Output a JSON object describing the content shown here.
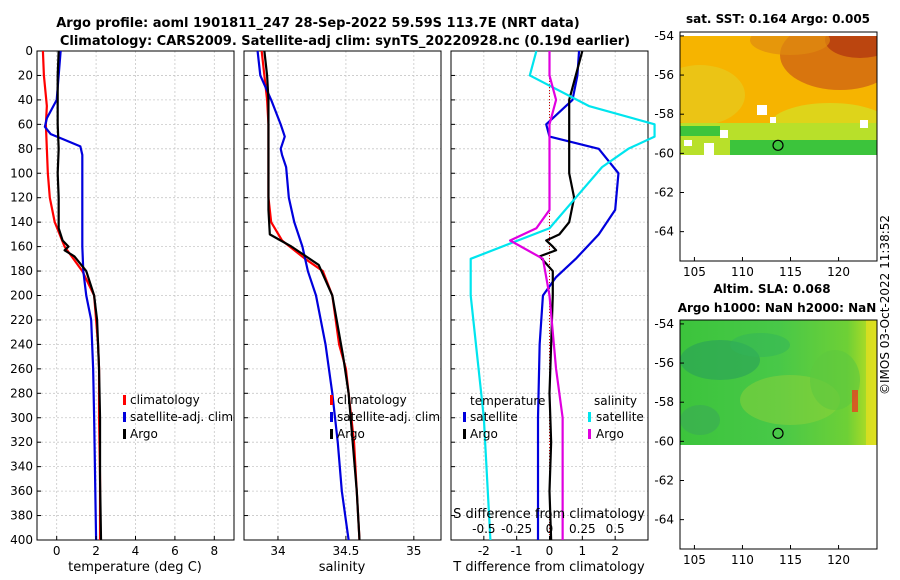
{
  "title_line1": "Argo profile: aoml 1901811_247 28-Sep-2022 59.59S 113.7E (NRT data)",
  "title_line2": "Climatology: CARS2009. Satellite-adj clim: synTS_20220928.nc (0.19d earlier)",
  "footer_stamp": "©IMOS 03-Oct-2022 11:38:52",
  "colors": {
    "climatology": "#ff0000",
    "satellite": "#0000dd",
    "argo": "#000000",
    "sat_salinity": "#00e5ee",
    "argo_salinity": "#e000e0"
  },
  "chart_data": [
    {
      "type": "line",
      "id": "temperature",
      "xlabel": "temperature (deg C)",
      "xlim": [
        -1,
        9
      ],
      "ylim": [
        0,
        400
      ],
      "xticks": [
        0,
        2,
        4,
        6,
        8
      ],
      "yticks": [
        0,
        20,
        40,
        60,
        80,
        100,
        120,
        140,
        160,
        180,
        200,
        220,
        240,
        260,
        280,
        300,
        320,
        340,
        360,
        380,
        400
      ],
      "legend": [
        "climatology",
        "satellite-adj. clim",
        "Argo"
      ],
      "series": [
        {
          "name": "climatology",
          "color": "#ff0000",
          "points": [
            [
              -0.7,
              0
            ],
            [
              -0.65,
              20
            ],
            [
              -0.5,
              45
            ],
            [
              -0.55,
              60
            ],
            [
              -0.5,
              80
            ],
            [
              -0.45,
              100
            ],
            [
              -0.35,
              120
            ],
            [
              -0.1,
              140
            ],
            [
              0.4,
              160
            ],
            [
              1.3,
              180
            ],
            [
              1.9,
              200
            ],
            [
              2.0,
              220
            ],
            [
              2.1,
              240
            ],
            [
              2.15,
              260
            ],
            [
              2.15,
              300
            ],
            [
              2.2,
              350
            ],
            [
              2.2,
              400
            ]
          ]
        },
        {
          "name": "satellite-adj. clim",
          "color": "#0000dd",
          "points": [
            [
              0.2,
              0
            ],
            [
              0.1,
              20
            ],
            [
              0.0,
              40
            ],
            [
              -0.5,
              55
            ],
            [
              -0.6,
              62
            ],
            [
              -0.3,
              68
            ],
            [
              0.3,
              72
            ],
            [
              1.2,
              78
            ],
            [
              1.3,
              85
            ],
            [
              1.3,
              100
            ],
            [
              1.3,
              160
            ],
            [
              1.35,
              180
            ],
            [
              1.5,
              200
            ],
            [
              1.75,
              220
            ],
            [
              1.85,
              260
            ],
            [
              1.9,
              300
            ],
            [
              1.95,
              350
            ],
            [
              2.0,
              400
            ]
          ]
        },
        {
          "name": "Argo",
          "color": "#000000",
          "points": [
            [
              0.1,
              0
            ],
            [
              0.05,
              20
            ],
            [
              0.05,
              40
            ],
            [
              0.05,
              60
            ],
            [
              0.1,
              80
            ],
            [
              0.05,
              100
            ],
            [
              0.1,
              120
            ],
            [
              0.1,
              145
            ],
            [
              0.3,
              155
            ],
            [
              0.6,
              160
            ],
            [
              0.4,
              163
            ],
            [
              0.9,
              168
            ],
            [
              1.5,
              180
            ],
            [
              1.9,
              200
            ],
            [
              2.05,
              220
            ],
            [
              2.1,
              240
            ],
            [
              2.15,
              260
            ],
            [
              2.2,
              300
            ],
            [
              2.2,
              350
            ],
            [
              2.25,
              400
            ]
          ]
        }
      ]
    },
    {
      "type": "line",
      "id": "salinity",
      "xlabel": "salinity",
      "xlim": [
        33.75,
        35.2
      ],
      "ylim": [
        0,
        400
      ],
      "xticks": [
        34,
        34.5,
        35
      ],
      "xtick_labels": [
        "34",
        "34.5",
        "35"
      ],
      "yticks": [
        0,
        20,
        40,
        60,
        80,
        100,
        120,
        140,
        160,
        180,
        200,
        220,
        240,
        260,
        280,
        300,
        320,
        340,
        360,
        380,
        400
      ],
      "legend": [
        "climatology",
        "satellite-adj. clim",
        "Argo"
      ],
      "series": [
        {
          "name": "climatology",
          "color": "#ff0000",
          "points": [
            [
              33.88,
              0
            ],
            [
              33.9,
              20
            ],
            [
              33.92,
              40
            ],
            [
              33.93,
              60
            ],
            [
              33.93,
              90
            ],
            [
              33.93,
              120
            ],
            [
              33.95,
              140
            ],
            [
              34.03,
              155
            ],
            [
              34.2,
              170
            ],
            [
              34.33,
              180
            ],
            [
              34.4,
              200
            ],
            [
              34.45,
              240
            ],
            [
              34.5,
              260
            ],
            [
              34.52,
              280
            ],
            [
              34.56,
              320
            ],
            [
              34.58,
              360
            ],
            [
              34.6,
              400
            ]
          ]
        },
        {
          "name": "satellite-adj. clim",
          "color": "#0000dd",
          "points": [
            [
              33.85,
              0
            ],
            [
              33.87,
              20
            ],
            [
              33.95,
              40
            ],
            [
              34.02,
              60
            ],
            [
              34.05,
              70
            ],
            [
              34.02,
              80
            ],
            [
              34.03,
              85
            ],
            [
              34.06,
              95
            ],
            [
              34.08,
              120
            ],
            [
              34.12,
              140
            ],
            [
              34.18,
              160
            ],
            [
              34.22,
              180
            ],
            [
              34.28,
              200
            ],
            [
              34.35,
              240
            ],
            [
              34.4,
              280
            ],
            [
              34.44,
              320
            ],
            [
              34.47,
              360
            ],
            [
              34.52,
              400
            ]
          ]
        },
        {
          "name": "Argo",
          "color": "#000000",
          "points": [
            [
              33.9,
              0
            ],
            [
              33.92,
              20
            ],
            [
              33.93,
              40
            ],
            [
              33.93,
              60
            ],
            [
              33.93,
              80
            ],
            [
              33.93,
              100
            ],
            [
              33.93,
              130
            ],
            [
              33.94,
              150
            ],
            [
              34.02,
              155
            ],
            [
              34.1,
              160
            ],
            [
              34.3,
              175
            ],
            [
              34.4,
              200
            ],
            [
              34.48,
              250
            ],
            [
              34.52,
              280
            ],
            [
              34.55,
              320
            ],
            [
              34.58,
              360
            ],
            [
              34.6,
              400
            ]
          ]
        }
      ]
    },
    {
      "type": "line",
      "id": "difference",
      "xlabel": "T difference from climatology",
      "top_xlabel": "S difference from climatology",
      "xlim": [
        -3,
        3
      ],
      "ylim": [
        0,
        400
      ],
      "xticks": [
        -2,
        -1,
        0,
        1,
        2
      ],
      "top_xticks": [
        -0.5,
        -0.25,
        0,
        0.25,
        0.5
      ],
      "top_xtick_labels": [
        "-0.5",
        "-0.25",
        "0",
        "0.25",
        "0.5"
      ],
      "yticks": [
        0,
        20,
        40,
        60,
        80,
        100,
        120,
        140,
        160,
        180,
        200,
        220,
        240,
        260,
        280,
        300,
        320,
        340,
        360,
        380,
        400
      ],
      "legend_temperature_title": "temperature",
      "legend_salinity_title": "salinity",
      "legend": [
        "satellite",
        "Argo",
        "satellite",
        "Argo"
      ],
      "series": [
        {
          "name": "T satellite",
          "color": "#0000dd",
          "points": [
            [
              0.9,
              0
            ],
            [
              0.85,
              20
            ],
            [
              0.7,
              40
            ],
            [
              -0.1,
              60
            ],
            [
              0.0,
              70
            ],
            [
              1.5,
              80
            ],
            [
              2.1,
              100
            ],
            [
              2.0,
              130
            ],
            [
              1.5,
              150
            ],
            [
              0.8,
              170
            ],
            [
              0.2,
              185
            ],
            [
              -0.2,
              200
            ],
            [
              -0.3,
              240
            ],
            [
              -0.35,
              300
            ],
            [
              -0.35,
              350
            ],
            [
              -0.35,
              400
            ]
          ]
        },
        {
          "name": "T Argo",
          "color": "#000000",
          "points": [
            [
              1.0,
              0
            ],
            [
              0.8,
              20
            ],
            [
              0.6,
              40
            ],
            [
              0.6,
              60
            ],
            [
              0.6,
              80
            ],
            [
              0.6,
              100
            ],
            [
              0.75,
              120
            ],
            [
              0.6,
              140
            ],
            [
              0.3,
              150
            ],
            [
              -0.1,
              155
            ],
            [
              0.1,
              160
            ],
            [
              0.2,
              163
            ],
            [
              -0.3,
              168
            ],
            [
              0.1,
              180
            ],
            [
              0.1,
              200
            ],
            [
              0.05,
              240
            ],
            [
              0.0,
              280
            ],
            [
              0.05,
              320
            ],
            [
              0.0,
              360
            ],
            [
              0.05,
              400
            ]
          ]
        },
        {
          "name": "S satellite",
          "color": "#00e5ee",
          "points": [
            [
              -0.1,
              0
            ],
            [
              -0.15,
              20
            ],
            [
              0.3,
              45
            ],
            [
              0.8,
              60
            ],
            [
              0.8,
              70
            ],
            [
              0.6,
              80
            ],
            [
              0.4,
              95
            ],
            [
              0.2,
              120
            ],
            [
              0.0,
              145
            ],
            [
              -0.6,
              170
            ],
            [
              -0.6,
              185
            ],
            [
              -0.6,
              200
            ],
            [
              -0.55,
              250
            ],
            [
              -0.5,
              300
            ],
            [
              -0.45,
              400
            ]
          ]
        },
        {
          "name": "S Argo",
          "color": "#e000e0",
          "points": [
            [
              0.0,
              0
            ],
            [
              0.0,
              20
            ],
            [
              0.05,
              40
            ],
            [
              0.0,
              60
            ],
            [
              0.0,
              100
            ],
            [
              0.0,
              130
            ],
            [
              -0.1,
              145
            ],
            [
              -0.3,
              155
            ],
            [
              -0.05,
              170
            ],
            [
              0.0,
              200
            ],
            [
              0.05,
              260
            ],
            [
              0.1,
              300
            ],
            [
              0.1,
              400
            ]
          ]
        }
      ]
    },
    {
      "type": "heatmap",
      "id": "sst_map",
      "title": "sat. SST: 0.164 Argo: 0.005",
      "xlim": [
        103.5,
        124
      ],
      "ylim": [
        -65.5,
        -53.8
      ],
      "xticks": [
        105,
        110,
        115,
        120
      ],
      "yticks": [
        -54,
        -56,
        -58,
        -60,
        -62,
        -64
      ],
      "ytick_labels": [
        "-54",
        "-56",
        "-58",
        "-60",
        "-62",
        "-64"
      ],
      "data_extent_lat": [
        -60.2,
        -53.8
      ],
      "profile_marker": {
        "lon": 113.7,
        "lat": -59.59
      }
    },
    {
      "type": "heatmap",
      "id": "sla_map",
      "title_line1": "Altim. SLA: 0.068",
      "title_line2": "Argo h1000: NaN h2000: NaN",
      "xlim": [
        103.5,
        124
      ],
      "ylim": [
        -65.5,
        -53.8
      ],
      "xticks": [
        105,
        110,
        115,
        120
      ],
      "yticks": [
        -54,
        -56,
        -58,
        -60,
        -62,
        -64
      ],
      "ytick_labels": [
        "-54",
        "-56",
        "-58",
        "-60",
        "-62",
        "-64"
      ],
      "data_extent_lat": [
        -60.2,
        -53.8
      ],
      "profile_marker": {
        "lon": 113.7,
        "lat": -59.59
      }
    }
  ]
}
